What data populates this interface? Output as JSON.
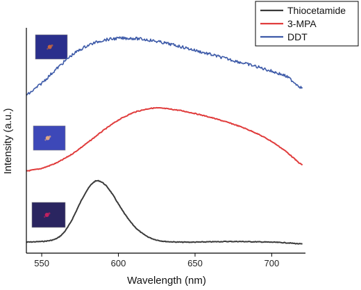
{
  "chart_data": {
    "type": "line",
    "title": "",
    "xlabel": "Wavelength (nm)",
    "ylabel": "Intensity (a.u.)",
    "xlim": [
      540,
      722
    ],
    "xticks": [
      550,
      600,
      650,
      700
    ],
    "y_ticks_shown": false,
    "grid": false,
    "legend_position": "top-right",
    "series": [
      {
        "name": "Thiocetamide",
        "color": "#3a3a3a",
        "x": [
          540,
          550,
          555,
          560,
          565,
          570,
          575,
          580,
          585,
          590,
          595,
          600,
          605,
          610,
          615,
          620,
          625,
          630,
          640,
          650,
          660,
          670,
          680,
          690,
          700,
          710,
          720
        ],
        "y": [
          0.03,
          0.04,
          0.05,
          0.08,
          0.18,
          0.38,
          0.64,
          0.86,
          1.0,
          0.96,
          0.82,
          0.62,
          0.43,
          0.28,
          0.17,
          0.1,
          0.06,
          0.04,
          0.03,
          0.03,
          0.035,
          0.04,
          0.04,
          0.035,
          0.03,
          0.02,
          0.0
        ]
      },
      {
        "name": "3-MPA",
        "color": "#e03c3c",
        "x": [
          540,
          550,
          560,
          570,
          580,
          590,
          600,
          610,
          620,
          625,
          630,
          640,
          650,
          660,
          670,
          680,
          690,
          700,
          710,
          720
        ],
        "y": [
          0.0,
          0.04,
          0.13,
          0.27,
          0.45,
          0.64,
          0.81,
          0.93,
          0.99,
          1.0,
          0.99,
          0.96,
          0.91,
          0.85,
          0.78,
          0.7,
          0.6,
          0.47,
          0.3,
          0.08
        ]
      },
      {
        "name": "DDT",
        "color": "#3d5aa8",
        "x": [
          540,
          550,
          560,
          570,
          580,
          590,
          600,
          610,
          620,
          630,
          640,
          650,
          660,
          670,
          680,
          690,
          700,
          710,
          720
        ],
        "y": [
          0.0,
          0.22,
          0.48,
          0.72,
          0.88,
          0.97,
          1.0,
          1.0,
          0.97,
          0.92,
          0.86,
          0.79,
          0.72,
          0.65,
          0.58,
          0.51,
          0.43,
          0.34,
          0.12
        ]
      }
    ],
    "insets": [
      {
        "series": "DDT",
        "color": "#2a2f8c",
        "spot": "#d06a3a"
      },
      {
        "series": "3-MPA",
        "color": "#3d48b8",
        "spot": "#f0b080"
      },
      {
        "series": "Thiocetamide",
        "color": "#2a2560",
        "spot": "#d02060"
      }
    ]
  }
}
